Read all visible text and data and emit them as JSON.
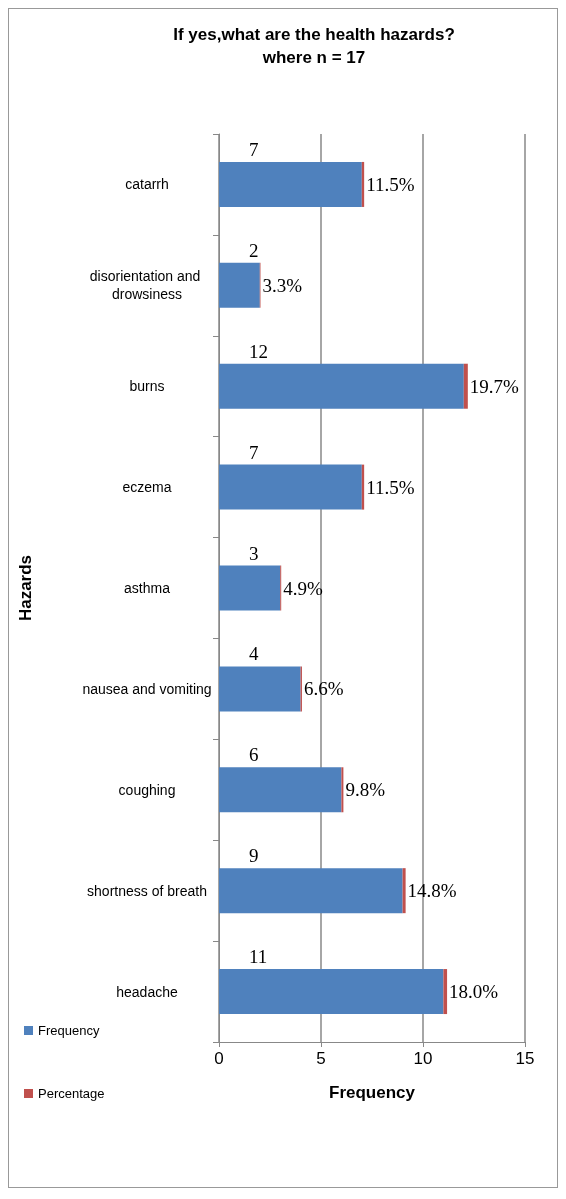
{
  "chart_data": {
    "type": "bar",
    "orientation": "horizontal",
    "stacked": true,
    "title": "If yes,what are the health hazards?",
    "subtitle": "where n = 17",
    "xlabel": "Frequency",
    "ylabel": "Hazards",
    "categories": [
      "catarrh",
      "disorientation and drowsiness",
      "burns",
      "eczema",
      "asthma",
      "nausea and vomiting",
      "coughing",
      "shortness of breath",
      "headache"
    ],
    "series": [
      {
        "name": "Frequency",
        "color": "#4f81bd",
        "values": [
          7,
          2,
          12,
          7,
          3,
          4,
          6,
          9,
          11
        ],
        "value_labels": [
          "7",
          "2",
          "12",
          "7",
          "3",
          "4",
          "6",
          "9",
          "11"
        ]
      },
      {
        "name": "Percentage",
        "color": "#c0504d",
        "values": [
          0.115,
          0.033,
          0.197,
          0.115,
          0.049,
          0.066,
          0.098,
          0.148,
          0.18
        ],
        "value_labels": [
          "11.5%",
          "3.3%",
          "19.7%",
          "11.5%",
          "4.9%",
          "6.6%",
          "9.8%",
          "14.8%",
          "18.0%"
        ]
      }
    ],
    "xlim": [
      0,
      15
    ],
    "xticks": [
      0,
      5,
      10,
      15
    ],
    "grid": "x",
    "legend": "bottom left"
  }
}
